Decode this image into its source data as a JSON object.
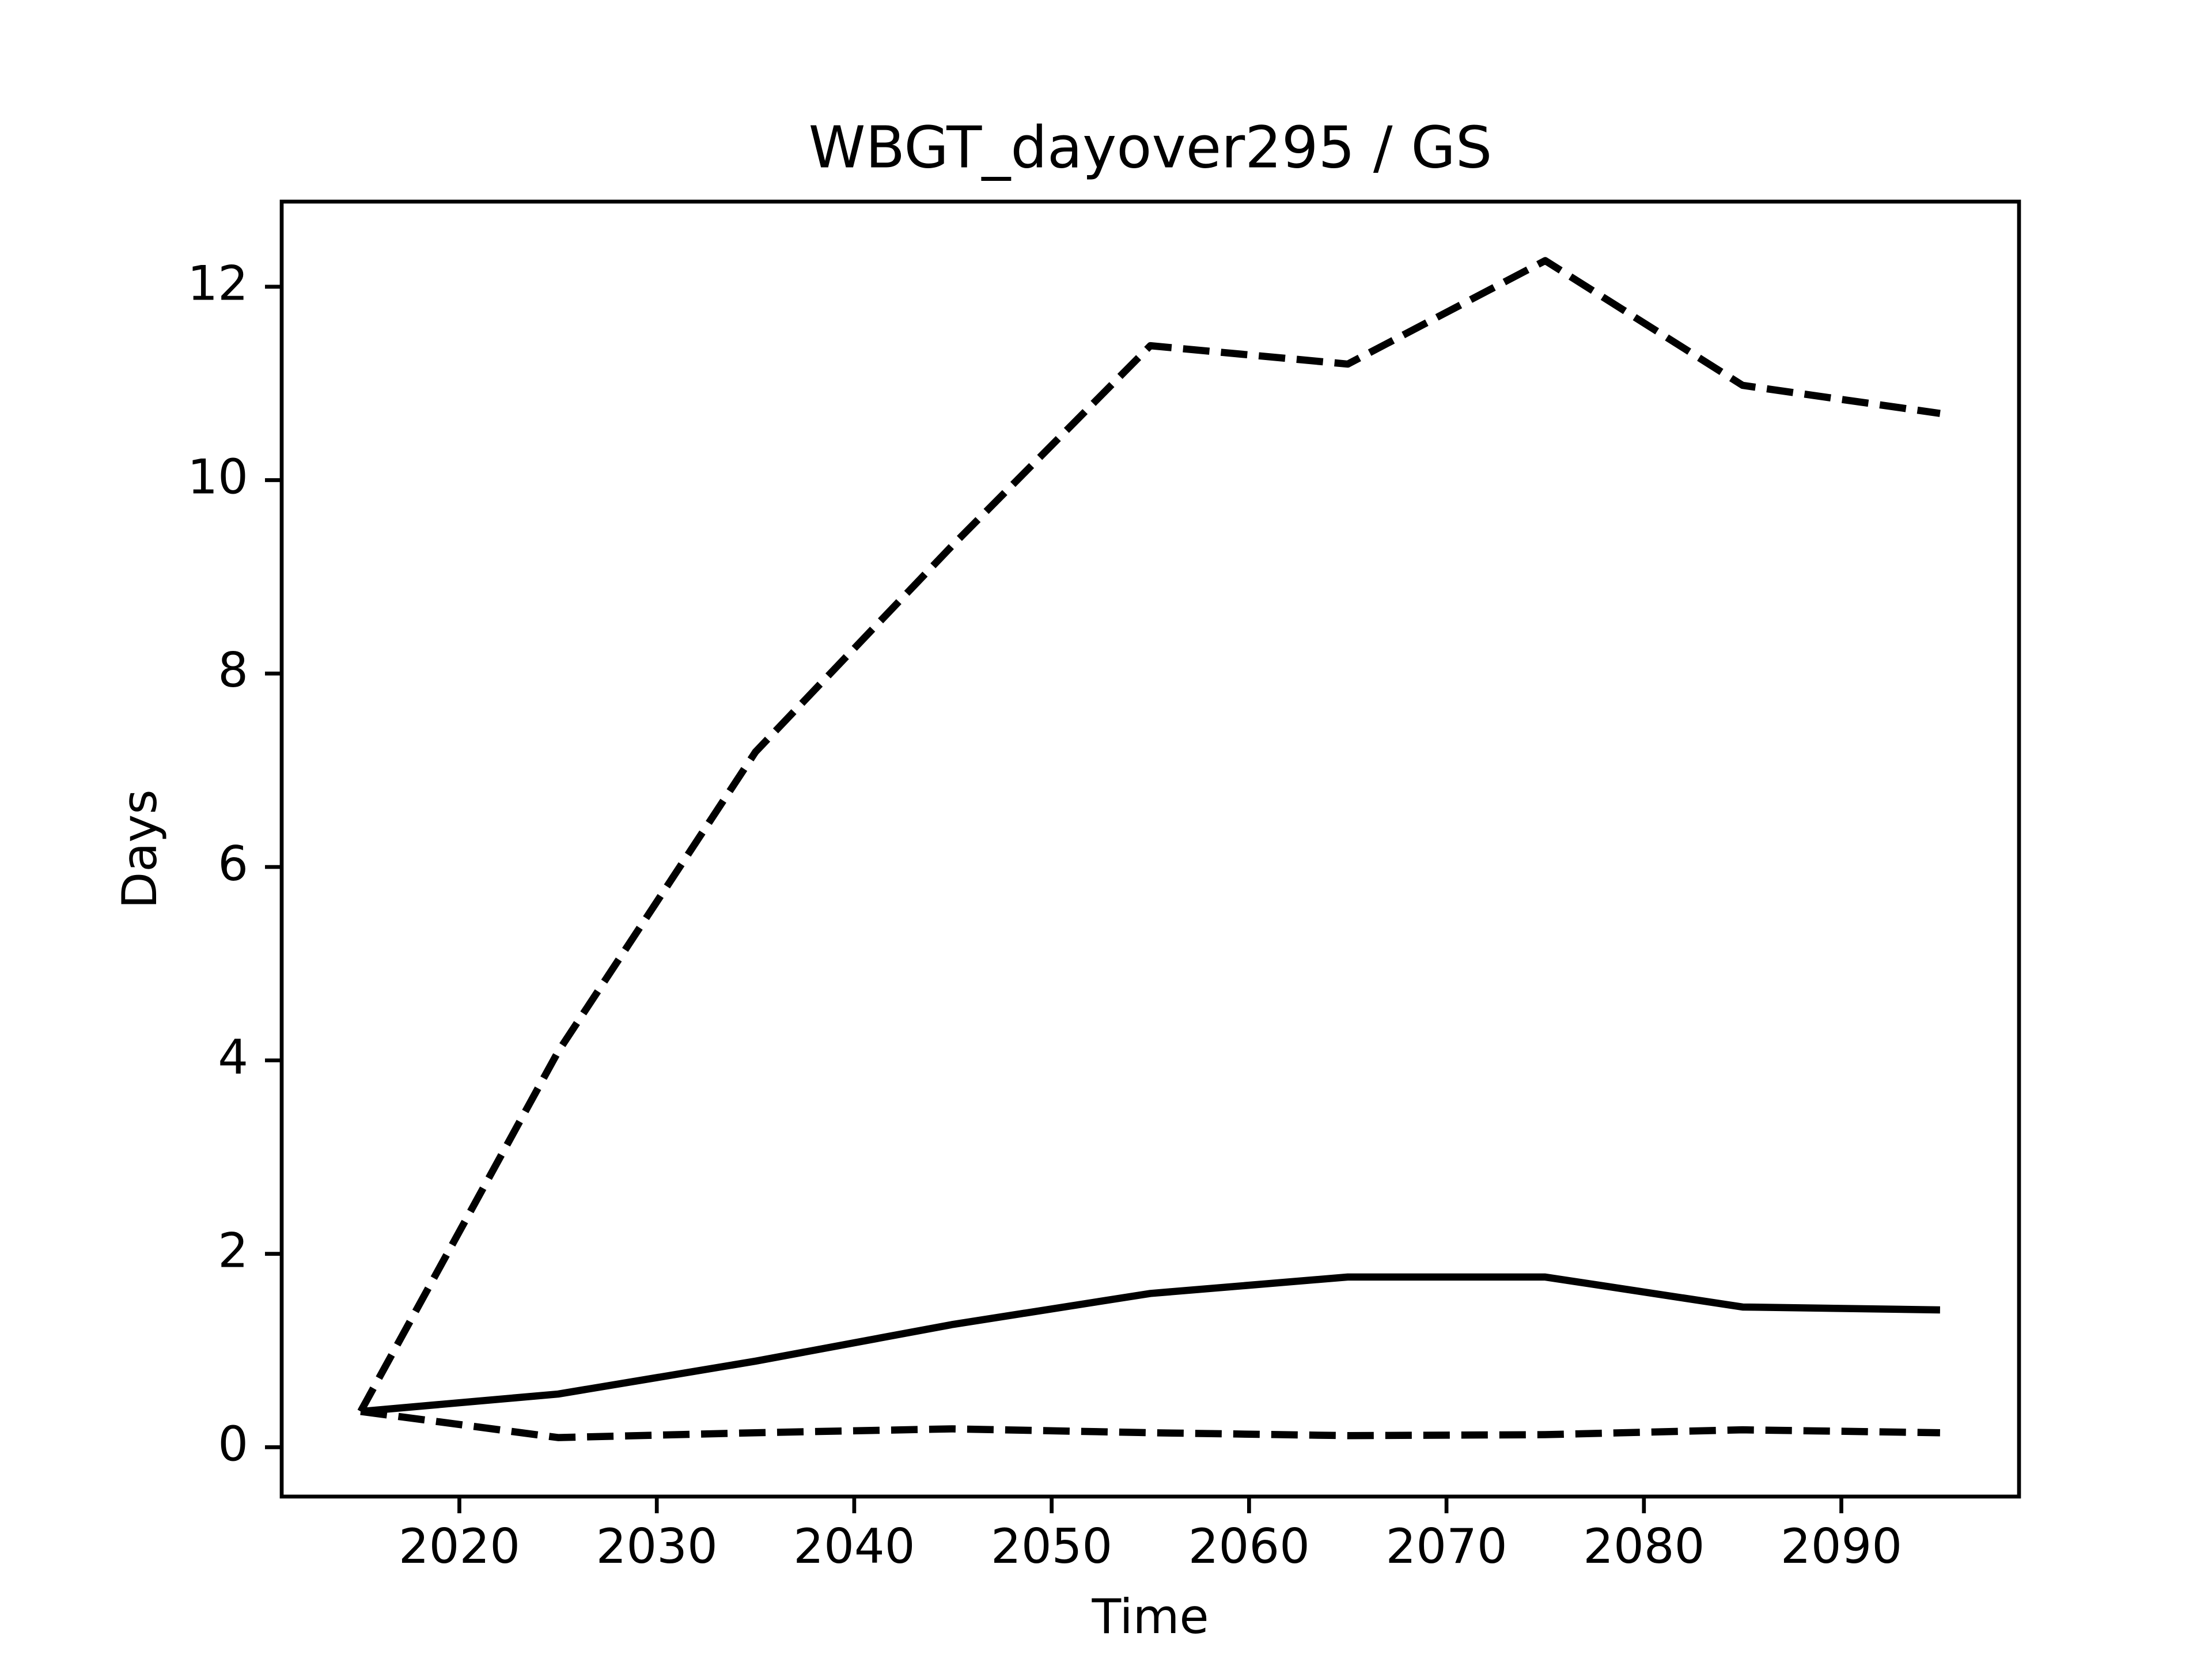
{
  "chart_data": {
    "type": "line",
    "title": "WBGT_dayover295 / GS",
    "xlabel": "Time",
    "ylabel": "Days",
    "x": [
      2015,
      2025,
      2035,
      2045,
      2055,
      2065,
      2075,
      2085,
      2095
    ],
    "series": [
      {
        "color": "#000000",
        "linestyle": "dashed",
        "values": [
          0.37,
          4.09,
          7.19,
          9.33,
          11.39,
          11.2,
          12.27,
          10.98,
          10.69
        ]
      },
      {
        "color": "#000000",
        "linestyle": "solid",
        "values": [
          0.37,
          0.55,
          0.89,
          1.27,
          1.59,
          1.76,
          1.76,
          1.45,
          1.42
        ]
      },
      {
        "color": "#000000",
        "linestyle": "dashed",
        "values": [
          0.37,
          0.1,
          0.15,
          0.19,
          0.15,
          0.12,
          0.13,
          0.18,
          0.15
        ]
      }
    ],
    "xlim": [
      2011,
      2099
    ],
    "xticks": [
      2020,
      2030,
      2040,
      2050,
      2060,
      2070,
      2080,
      2090
    ],
    "ylim": [
      -0.51,
      12.88
    ],
    "yticks": [
      0,
      2,
      4,
      6,
      8,
      10,
      12
    ]
  }
}
